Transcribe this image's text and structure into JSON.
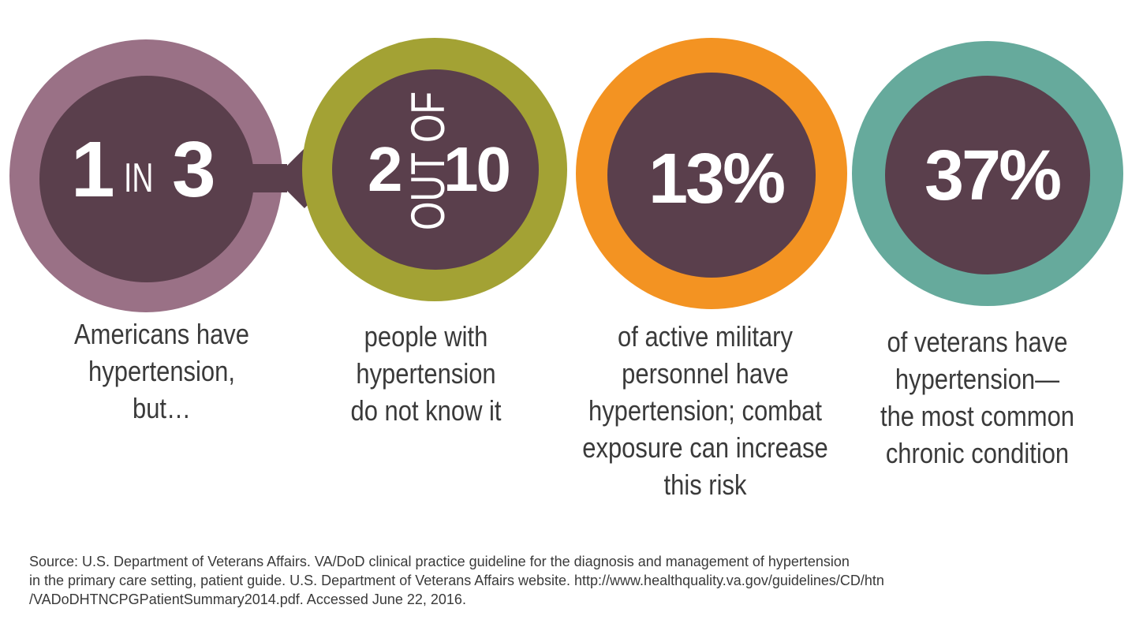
{
  "stats": [
    {
      "number_a": "1",
      "connector": "IN",
      "number_b": "3",
      "caption_lines": [
        "Americans have",
        "hypertension,",
        "but…"
      ],
      "ring_color": "#9a7186"
    },
    {
      "number_a": "2",
      "connector": "OUT OF",
      "number_b": "10",
      "caption_lines": [
        "people with",
        "hypertension",
        "do not know it"
      ],
      "ring_color": "#a3a234"
    },
    {
      "value": "13%",
      "caption_lines": [
        "of active military",
        "personnel have",
        "hypertension; combat",
        "exposure can increase",
        "this risk"
      ],
      "ring_color": "#f39322"
    },
    {
      "value": "37%",
      "caption_lines": [
        "of veterans have",
        "hypertension—",
        "the most common",
        "chronic condition"
      ],
      "ring_color": "#66aa9c"
    }
  ],
  "inner_color": "#5a3f4c",
  "source_lines": [
    "Source: U.S. Department of Veterans Affairs. VA/DoD clinical practice guideline for the diagnosis and management of hypertension",
    "in the primary care setting, patient guide. U.S. Department of Veterans Affairs website. http://www.healthquality.va.gov/guidelines/CD/htn",
    "/VADoDHTNCPGPatientSummary2014.pdf. Accessed June 22, 2016."
  ]
}
